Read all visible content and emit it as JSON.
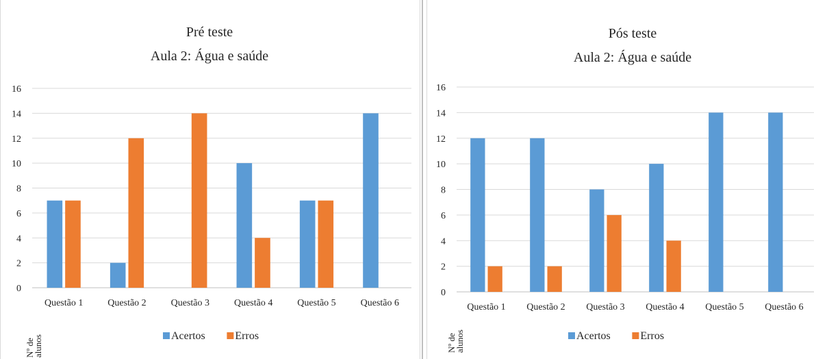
{
  "chart_data": [
    {
      "type": "bar",
      "title_lines": [
        "Pré teste",
        "Aula 2: Água e saúde"
      ],
      "ylabel_lines": [
        "Nº de",
        "alunos"
      ],
      "xlabel": "",
      "categories": [
        "Questão 1",
        "Questão 2",
        "Questão 3",
        "Questão 4",
        "Questão 5",
        "Questão 6"
      ],
      "series": [
        {
          "name": "Acertos",
          "color": "#5b9bd5",
          "values": [
            7,
            2,
            0,
            10,
            7,
            14
          ]
        },
        {
          "name": "Erros",
          "color": "#ed7d31",
          "values": [
            7,
            12,
            14,
            4,
            7,
            0
          ]
        }
      ],
      "ylim": [
        0,
        16
      ],
      "yticks": [
        0,
        2,
        4,
        6,
        8,
        10,
        12,
        14,
        16
      ],
      "grid": true,
      "legend": "bottom"
    },
    {
      "type": "bar",
      "title_lines": [
        "Pós teste",
        "Aula 2: Água e saúde"
      ],
      "ylabel_lines": [
        "Nº de",
        "alunos"
      ],
      "xlabel": "",
      "categories": [
        "Questão 1",
        "Questão 2",
        "Questão 3",
        "Questão 4",
        "Questão 5",
        "Questão 6"
      ],
      "series": [
        {
          "name": "Acertos",
          "color": "#5b9bd5",
          "values": [
            12,
            12,
            8,
            10,
            14,
            14
          ]
        },
        {
          "name": "Erros",
          "color": "#ed7d31",
          "values": [
            2,
            2,
            6,
            4,
            0,
            0
          ]
        }
      ],
      "ylim": [
        0,
        16
      ],
      "yticks": [
        0,
        2,
        4,
        6,
        8,
        10,
        12,
        14,
        16
      ],
      "grid": true,
      "legend": "bottom"
    }
  ]
}
